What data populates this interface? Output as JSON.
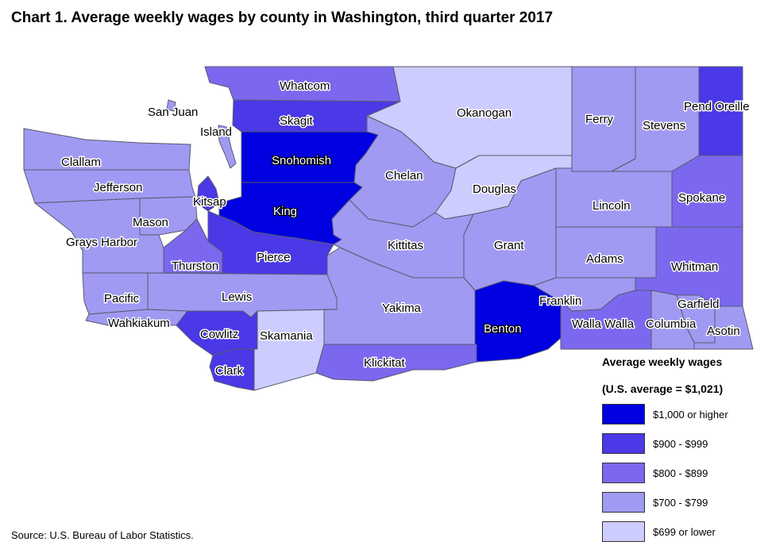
{
  "title": "Chart 1. Average weekly wages by county in Washington, third quarter 2017",
  "source": "Source: U.S. Bureau of Labor Statistics.",
  "legend": {
    "title": "Average weekly wages",
    "subtitle": "(U.S. average = $1,021)",
    "items": [
      {
        "label": "$1,000 or higher",
        "color": "#0000e0"
      },
      {
        "label": "$900 - $999",
        "color": "#4b38e6"
      },
      {
        "label": "$800 - $899",
        "color": "#7b68ee"
      },
      {
        "label": "$700 - $799",
        "color": "#a09af2"
      },
      {
        "label": "$699 or lower",
        "color": "#ccccfe"
      }
    ]
  },
  "map_data": {
    "water_color": "#ffffff",
    "counties": [
      {
        "name": "Whatcom",
        "class": 2
      },
      {
        "name": "San Juan",
        "class": 3
      },
      {
        "name": "Skagit",
        "class": 1
      },
      {
        "name": "Island",
        "class": 3
      },
      {
        "name": "Okanogan",
        "class": 4
      },
      {
        "name": "Ferry",
        "class": 3
      },
      {
        "name": "Stevens",
        "class": 3
      },
      {
        "name": "Pend Oreille",
        "class": 1
      },
      {
        "name": "Clallam",
        "class": 3
      },
      {
        "name": "Snohomish",
        "class": 0
      },
      {
        "name": "Chelan",
        "class": 3
      },
      {
        "name": "Jefferson",
        "class": 3
      },
      {
        "name": "Douglas",
        "class": 4
      },
      {
        "name": "Kitsap",
        "class": 1
      },
      {
        "name": "Mason",
        "class": 3
      },
      {
        "name": "King",
        "class": 0
      },
      {
        "name": "Lincoln",
        "class": 3
      },
      {
        "name": "Spokane",
        "class": 2
      },
      {
        "name": "Grays Harbor",
        "class": 3
      },
      {
        "name": "Kittitas",
        "class": 3
      },
      {
        "name": "Grant",
        "class": 3
      },
      {
        "name": "Thurston",
        "class": 2
      },
      {
        "name": "Pierce",
        "class": 1
      },
      {
        "name": "Adams",
        "class": 3
      },
      {
        "name": "Whitman",
        "class": 2
      },
      {
        "name": "Pacific",
        "class": 3
      },
      {
        "name": "Lewis",
        "class": 3
      },
      {
        "name": "Franklin",
        "class": 3
      },
      {
        "name": "Garfield",
        "class": 3
      },
      {
        "name": "Yakima",
        "class": 3
      },
      {
        "name": "Wahkiakum",
        "class": 3
      },
      {
        "name": "Benton",
        "class": 0
      },
      {
        "name": "Walla Walla",
        "class": 2
      },
      {
        "name": "Columbia",
        "class": 3
      },
      {
        "name": "Asotin",
        "class": 3
      },
      {
        "name": "Cowlitz",
        "class": 1
      },
      {
        "name": "Skamania",
        "class": 4
      },
      {
        "name": "Klickitat",
        "class": 2
      },
      {
        "name": "Clark",
        "class": 1
      }
    ]
  }
}
